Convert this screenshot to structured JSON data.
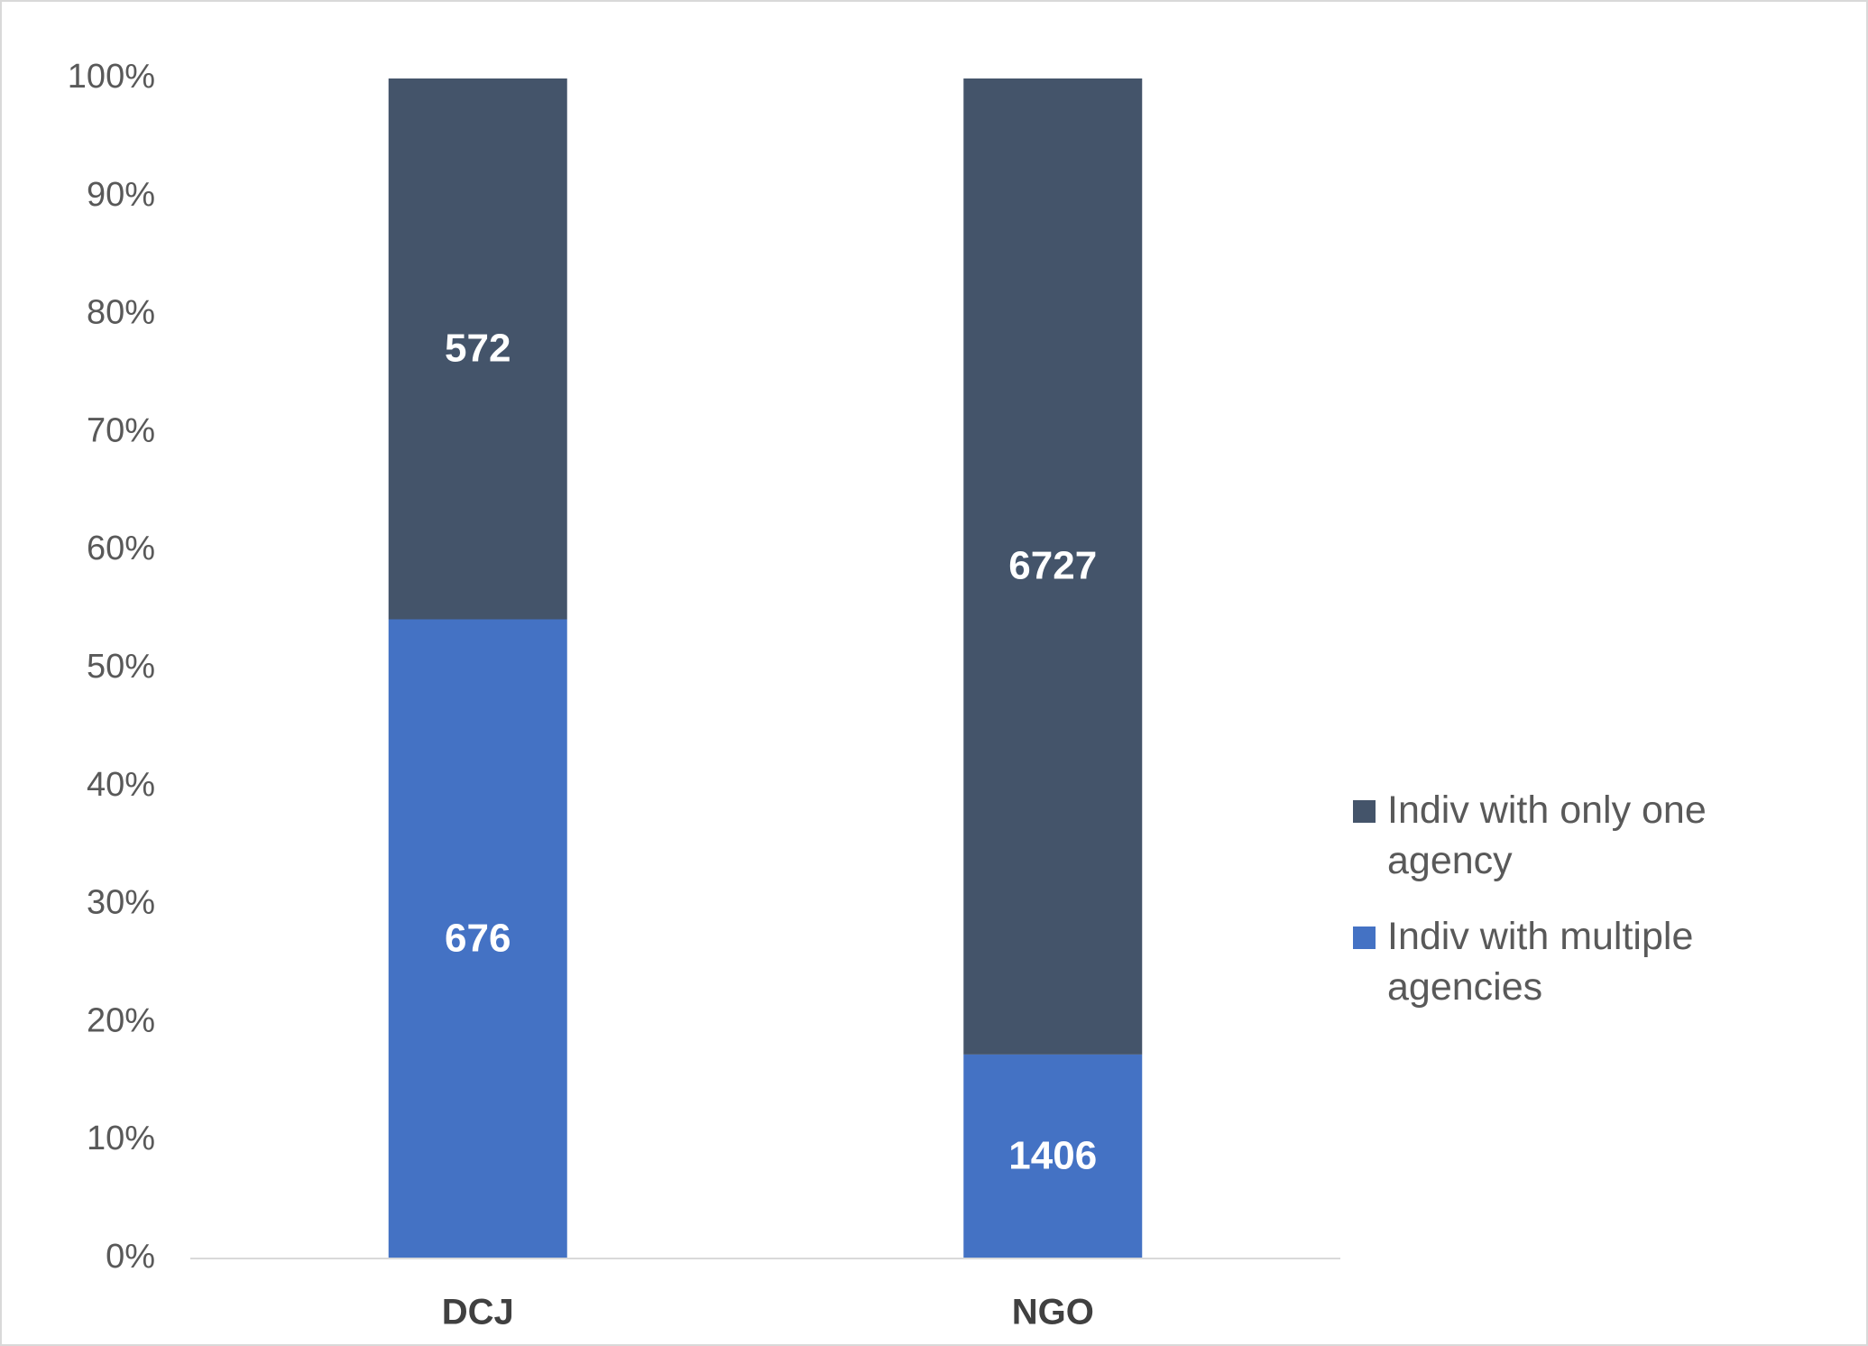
{
  "chart_data": {
    "type": "bar",
    "stack": "percent",
    "categories": [
      "DCJ",
      "NGO"
    ],
    "series": [
      {
        "name": "Indiv with multiple agencies",
        "color": "#4472c4",
        "values": [
          676,
          1406
        ]
      },
      {
        "name": "Indiv with only one agency",
        "color": "#44546a",
        "values": [
          572,
          6727
        ]
      }
    ],
    "ylim": [
      0,
      100
    ],
    "yticks": [
      {
        "value": 0,
        "label": "0%"
      },
      {
        "value": 10,
        "label": "10%"
      },
      {
        "value": 20,
        "label": "20%"
      },
      {
        "value": 30,
        "label": "30%"
      },
      {
        "value": 40,
        "label": "40%"
      },
      {
        "value": 50,
        "label": "50%"
      },
      {
        "value": 60,
        "label": "60%"
      },
      {
        "value": 70,
        "label": "70%"
      },
      {
        "value": 80,
        "label": "80%"
      },
      {
        "value": 90,
        "label": "90%"
      },
      {
        "value": 100,
        "label": "100%"
      }
    ],
    "grid": false
  }
}
